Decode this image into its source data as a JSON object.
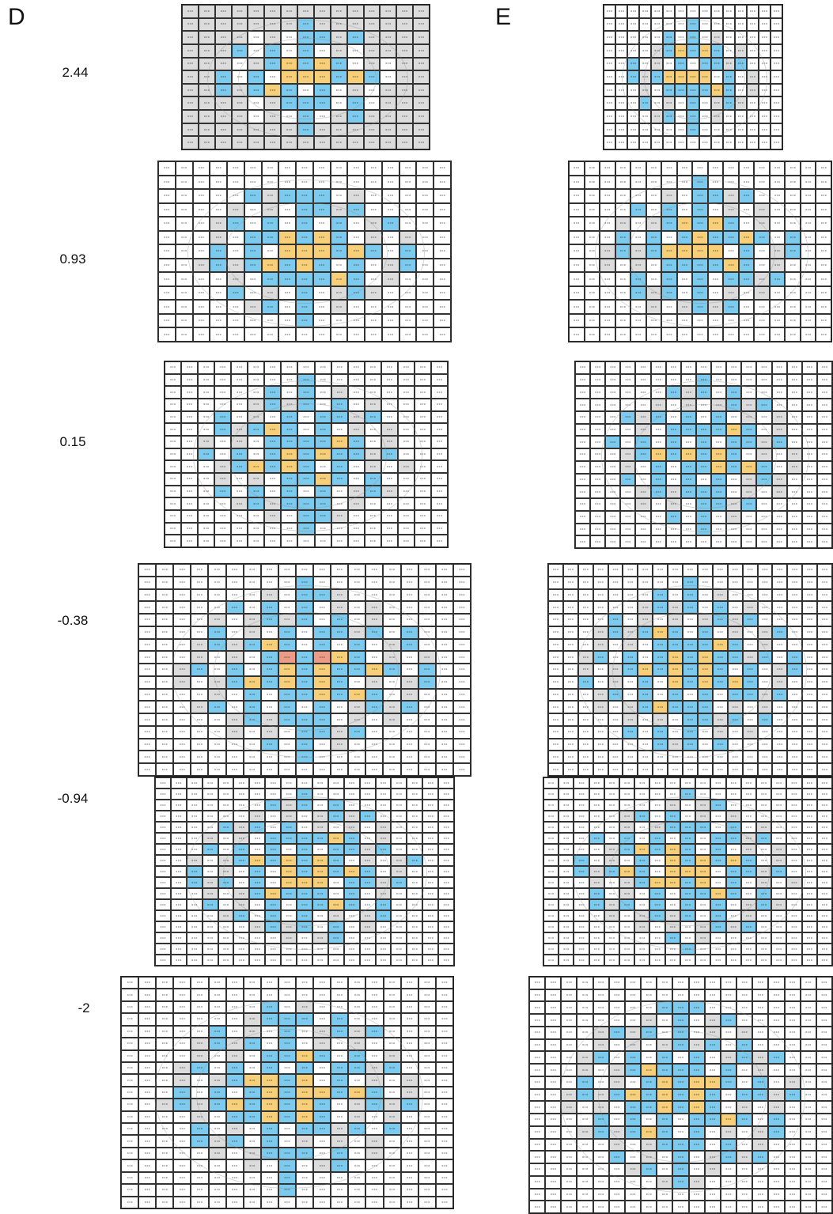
{
  "panels": [
    {
      "letter": "D"
    },
    {
      "letter": "E"
    }
  ],
  "row_labels": [
    "2.44",
    "0.93",
    "0.15",
    "-0.38",
    "-0.94",
    "-2"
  ],
  "cell_value": "0 ± 0",
  "colors": {
    "blue": "#7ccaed",
    "orange": "#f7cf78",
    "red": "#ec9c86",
    "gray": "#dcdcdc",
    "white": "#ffffff"
  }
}
